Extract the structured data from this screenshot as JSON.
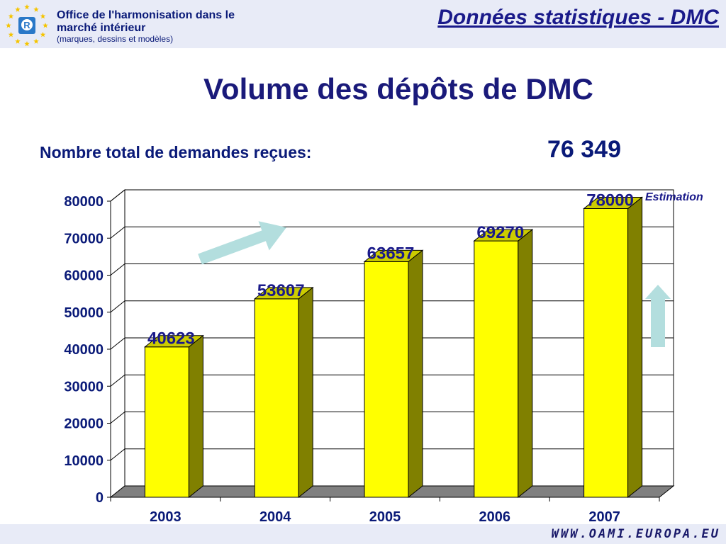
{
  "header": {
    "org_line1": "Office de l'harmonisation dans le",
    "org_line2": "marché intérieur",
    "org_sub": "(marques, dessins et modèles)",
    "section_title": "Données statistiques - DMC",
    "logo_letter": "R"
  },
  "summary": {
    "total_label": "Nombre total de demandes reçues:",
    "total_value": "76 349",
    "estimation_note": "Estimation"
  },
  "footer": {
    "url": "WWW.OAMI.EUROPA.EU"
  },
  "colors": {
    "bar_front": "#ffff00",
    "bar_side": "#808000",
    "floor": "#808080",
    "arrow": "#b3dede",
    "text_dark_blue": "#0a1a78"
  },
  "chart_data": {
    "type": "bar",
    "title": "Volume des dépôts de DMC",
    "categories": [
      "2003",
      "2004",
      "2005",
      "2006",
      "2007"
    ],
    "values": [
      40623,
      53607,
      63657,
      69270,
      78000
    ],
    "data_labels": [
      "40623",
      "53607",
      "63657",
      "69270",
      "78000"
    ],
    "ylim": [
      0,
      80000
    ],
    "yticks": [
      0,
      10000,
      20000,
      30000,
      40000,
      50000,
      60000,
      70000,
      80000
    ],
    "grid": true,
    "legend": "none",
    "style": "3d"
  }
}
